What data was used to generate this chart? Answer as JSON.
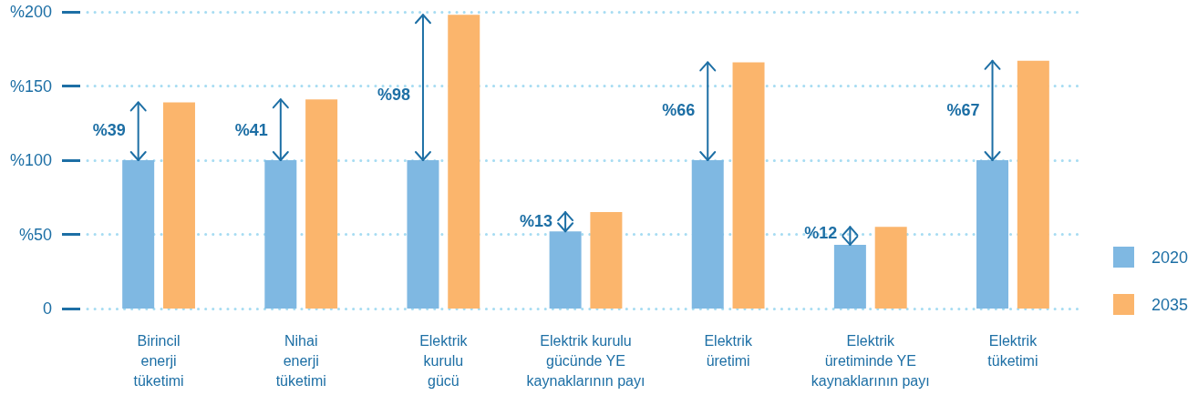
{
  "chart_data": {
    "type": "bar",
    "categories": [
      "Birincil\nenerji\ntüketimi",
      "Nihai\nenerji\ntüketimi",
      "Elektrik\nkurulu\ngücü",
      "Elektrik kurulu\ngücünde YE\nkaynaklarının payı",
      "Elektrik\nüretimi",
      "Elektrik\nüretiminde YE\nkaynaklarının payı",
      "Elektrik\ntüketimi"
    ],
    "series": [
      {
        "name": "2020",
        "color": "#7fb8e2",
        "values": [
          100,
          100,
          100,
          52,
          100,
          43,
          100
        ]
      },
      {
        "name": "2035",
        "color": "#fbb56c",
        "values": [
          139,
          141,
          198,
          65,
          166,
          55,
          167
        ]
      }
    ],
    "ylim": [
      0,
      200
    ],
    "yticks": [
      0,
      {
        "value": 50,
        "label": "%50"
      },
      {
        "value": 100,
        "label": "%100"
      },
      {
        "value": 150,
        "label": "%150"
      },
      {
        "value": 200,
        "label": "%200"
      }
    ],
    "grid": "y",
    "legend": "right",
    "annotations": [
      {
        "text": "%39",
        "x": "Birincil\nenerji\ntüketimi",
        "y": 120
      },
      {
        "text": "%41",
        "x": "Nihai\nenerji\ntüketimi",
        "y": 120
      },
      {
        "text": "%98",
        "x": "Elektrik\nkurulu\ngücü",
        "y": 144
      },
      {
        "text": "%13",
        "x": "Elektrik kurulu\ngücünde YE\nkaynaklarının payı",
        "y": 59
      },
      {
        "text": "%66",
        "x": "Elektrik\nüretimi",
        "y": 134
      },
      {
        "text": "%12",
        "x": "Elektrik\nüretiminde YE\nkaynaklarının payı",
        "y": 51
      },
      {
        "text": "%67",
        "x": "Elektrik\ntüketimi",
        "y": 134
      }
    ]
  }
}
